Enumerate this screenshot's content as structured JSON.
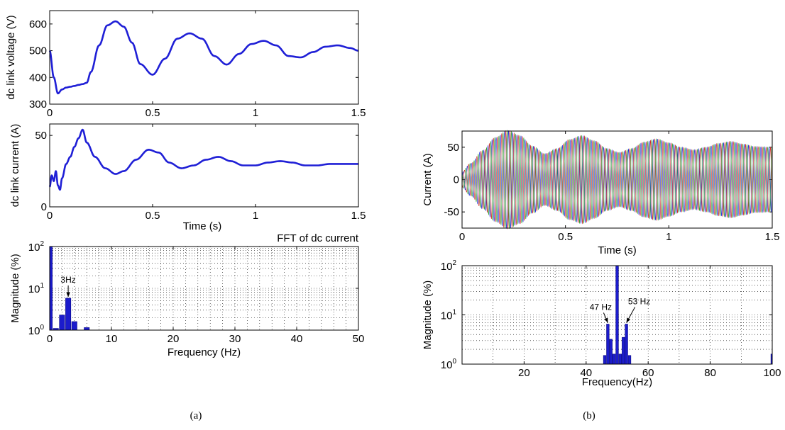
{
  "colors": {
    "trace": "#1f1fd6",
    "bar": "#1c1ccc",
    "phase_a": "#1f2fd8",
    "phase_b": "#cc2222",
    "phase_c": "#2e9e2e"
  },
  "captions": {
    "a": "(a)",
    "b": "(b)"
  },
  "chart_data": [
    {
      "id": "a1",
      "type": "line",
      "xlabel": "",
      "ylabel": "dc link voltage (V)",
      "xlim": [
        0,
        1.5
      ],
      "ylim": [
        300,
        650
      ],
      "xticks": [
        0,
        0.5,
        1,
        1.5
      ],
      "yticks": [
        300,
        400,
        500,
        600
      ],
      "xtick_labels": [
        "0",
        "0.5",
        "1",
        "1.5"
      ],
      "ytick_labels": [
        "300",
        "400",
        "500",
        "600"
      ],
      "x": [
        0,
        0.02,
        0.04,
        0.06,
        0.08,
        0.1,
        0.12,
        0.14,
        0.16,
        0.18,
        0.2,
        0.24,
        0.28,
        0.32,
        0.36,
        0.4,
        0.44,
        0.5,
        0.56,
        0.62,
        0.68,
        0.74,
        0.8,
        0.86,
        0.92,
        0.98,
        1.04,
        1.1,
        1.16,
        1.22,
        1.28,
        1.34,
        1.4,
        1.46,
        1.5
      ],
      "y": [
        500,
        400,
        340,
        355,
        362,
        365,
        368,
        372,
        375,
        380,
        420,
        520,
        595,
        610,
        590,
        530,
        450,
        410,
        470,
        545,
        565,
        545,
        480,
        448,
        488,
        525,
        537,
        520,
        480,
        475,
        495,
        515,
        520,
        510,
        500
      ]
    },
    {
      "id": "a2",
      "type": "line",
      "xlabel": "Time (s)",
      "ylabel": "dc link current (A)",
      "xlim": [
        0,
        1.5
      ],
      "ylim": [
        0,
        58
      ],
      "xticks": [
        0,
        0.5,
        1,
        1.5
      ],
      "yticks": [
        0,
        50
      ],
      "xtick_labels": [
        "0",
        "0.5",
        "1",
        "1.5"
      ],
      "ytick_labels": [
        "0",
        "50"
      ],
      "x": [
        0,
        0.01,
        0.02,
        0.03,
        0.04,
        0.05,
        0.06,
        0.08,
        0.1,
        0.12,
        0.14,
        0.16,
        0.18,
        0.22,
        0.27,
        0.32,
        0.36,
        0.42,
        0.48,
        0.53,
        0.58,
        0.64,
        0.7,
        0.76,
        0.82,
        0.88,
        0.94,
        1.0,
        1.06,
        1.12,
        1.18,
        1.24,
        1.3,
        1.36,
        1.42,
        1.5
      ],
      "y": [
        14,
        22,
        18,
        25,
        15,
        12,
        20,
        30,
        35,
        42,
        48,
        54,
        45,
        35,
        27,
        23,
        25,
        33,
        40,
        38,
        31,
        27,
        29,
        33,
        35,
        32,
        29,
        29,
        31,
        32,
        31,
        29,
        29,
        30,
        30,
        30
      ]
    },
    {
      "id": "a3",
      "type": "bar",
      "title": "FFT of dc current",
      "xlabel": "Frequency (Hz)",
      "ylabel": "Magnitude (%)",
      "yscale": "log",
      "grid": true,
      "xlim": [
        0,
        50
      ],
      "ylim": [
        1,
        100
      ],
      "xticks": [
        0,
        10,
        20,
        30,
        40,
        50
      ],
      "xtick_labels": [
        "0",
        "10",
        "20",
        "30",
        "40",
        "50"
      ],
      "yticks": [
        1,
        10,
        100
      ],
      "ytick_base": [
        "10",
        "10",
        "10"
      ],
      "ytick_exp": [
        "0",
        "1",
        "2"
      ],
      "x": [
        0,
        1,
        2,
        3,
        4,
        5,
        6
      ],
      "values": [
        100,
        1.1,
        2.3,
        5.8,
        1.6,
        1.0,
        1.15
      ],
      "annotations": [
        {
          "text": "3Hz",
          "x": 3,
          "y": 5.8
        }
      ]
    },
    {
      "id": "b1",
      "type": "line",
      "xlabel": "Time (s)",
      "ylabel": "Current (A)",
      "xlim": [
        0,
        1.5
      ],
      "ylim": [
        -75,
        75
      ],
      "xticks": [
        0,
        0.5,
        1,
        1.5
      ],
      "yticks": [
        -50,
        0,
        50
      ],
      "xtick_labels": [
        "0",
        "0.5",
        "1",
        "1.5"
      ],
      "ytick_labels": [
        "-50",
        "0",
        "50"
      ],
      "frequency_hz": 50,
      "series": [
        {
          "phase_deg": 0,
          "color_key": "phase_a"
        },
        {
          "phase_deg": 120,
          "color_key": "phase_b"
        },
        {
          "phase_deg": 240,
          "color_key": "phase_c"
        }
      ],
      "envelope_x": [
        0,
        0.04,
        0.1,
        0.16,
        0.22,
        0.28,
        0.34,
        0.4,
        0.46,
        0.52,
        0.58,
        0.64,
        0.7,
        0.76,
        0.82,
        0.88,
        0.94,
        1.0,
        1.06,
        1.12,
        1.18,
        1.24,
        1.3,
        1.36,
        1.42,
        1.5
      ],
      "envelope_y": [
        12,
        25,
        45,
        65,
        76,
        68,
        52,
        40,
        48,
        62,
        68,
        60,
        48,
        42,
        48,
        58,
        63,
        57,
        50,
        46,
        50,
        56,
        59,
        55,
        51,
        50
      ]
    },
    {
      "id": "b2",
      "type": "bar",
      "xlabel": "Frequency(Hz)",
      "ylabel": "Magnitude (%)",
      "yscale": "log",
      "grid": true,
      "xlim": [
        0,
        100
      ],
      "ylim": [
        1,
        100
      ],
      "xticks": [
        20,
        40,
        60,
        80,
        100
      ],
      "xtick_labels": [
        "20",
        "40",
        "60",
        "80",
        "100"
      ],
      "yticks": [
        1,
        10,
        100
      ],
      "ytick_base": [
        "10",
        "10",
        "10"
      ],
      "ytick_exp": [
        "0",
        "1",
        "2"
      ],
      "x": [
        46,
        47,
        48,
        49,
        50,
        51,
        52,
        53,
        54,
        100
      ],
      "values": [
        1.5,
        6.5,
        3.2,
        1.6,
        100,
        1.6,
        3.5,
        6.5,
        1.5,
        1.6
      ],
      "annotations": [
        {
          "text": "47 Hz",
          "x": 47,
          "y": 6.5
        },
        {
          "text": "53 Hz",
          "x": 53,
          "y": 6.5
        }
      ]
    }
  ]
}
